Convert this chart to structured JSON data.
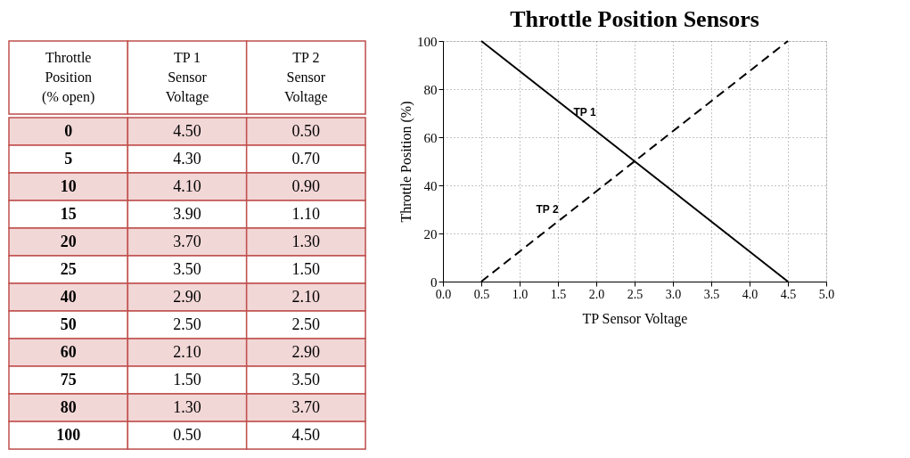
{
  "chart_data": [
    {
      "type": "other",
      "categories": [
        "Throttle\nPosition\n(% open)",
        "TP  1\nSensor\nVoltage",
        "TP  2\nSensor\nVoltage"
      ],
      "annotations": [
        "0",
        "4.50",
        "0.50",
        "5",
        "4.30",
        "0.70",
        "10",
        "4.10",
        "0.90",
        "15",
        "3.90",
        "1.10",
        "20",
        "3.70",
        "1.30",
        "25",
        "3.50",
        "1.50",
        "40",
        "2.90",
        "2.10",
        "50",
        "2.50",
        "2.50",
        "60",
        "2.10",
        "2.90",
        "75",
        "1.50",
        "3.50",
        "80",
        "1.30",
        "3.70",
        "100",
        "0.50",
        "4.50"
      ]
    },
    {
      "type": "line",
      "title": "Throttle Position Sensors",
      "xlabel": "TP Sensor Voltage",
      "ylabel": "Throttle Position (%)",
      "series": [
        {
          "name": "TP 1",
          "color": "#000000",
          "line_style": "solid",
          "x": [
            4.5,
            4.3,
            4.1,
            3.9,
            3.7,
            3.5,
            2.9,
            2.5,
            2.1,
            1.5,
            1.3,
            0.5
          ],
          "values": [
            0,
            5,
            10,
            15,
            20,
            25,
            40,
            50,
            60,
            75,
            80,
            100
          ]
        },
        {
          "name": "TP 2",
          "color": "#000000",
          "line_style": "dashed",
          "x": [
            0.5,
            0.7,
            0.9,
            1.1,
            1.3,
            1.5,
            2.1,
            2.5,
            2.9,
            3.5,
            3.7,
            4.5
          ],
          "values": [
            0,
            5,
            10,
            15,
            20,
            25,
            40,
            50,
            60,
            75,
            80,
            100
          ]
        }
      ],
      "xlim": [
        0,
        5
      ],
      "xticks": [
        {
          "value": 0,
          "label": "0.0"
        },
        {
          "value": 0.5,
          "label": "0.5"
        },
        {
          "value": 1,
          "label": "1.0"
        },
        {
          "value": 1.5,
          "label": "1.5"
        },
        {
          "value": 2,
          "label": "2.0"
        },
        {
          "value": 2.5,
          "label": "2.5"
        },
        {
          "value": 3,
          "label": "3.0"
        },
        {
          "value": 3.5,
          "label": "3.5"
        },
        {
          "value": 4,
          "label": "4.0"
        },
        {
          "value": 4.5,
          "label": "4.5"
        },
        {
          "value": 5,
          "label": "5.0"
        }
      ],
      "ylim": [
        0,
        100
      ],
      "yticks": [
        0,
        20,
        40,
        60,
        80,
        100
      ],
      "grid": true,
      "legend": false
    }
  ]
}
